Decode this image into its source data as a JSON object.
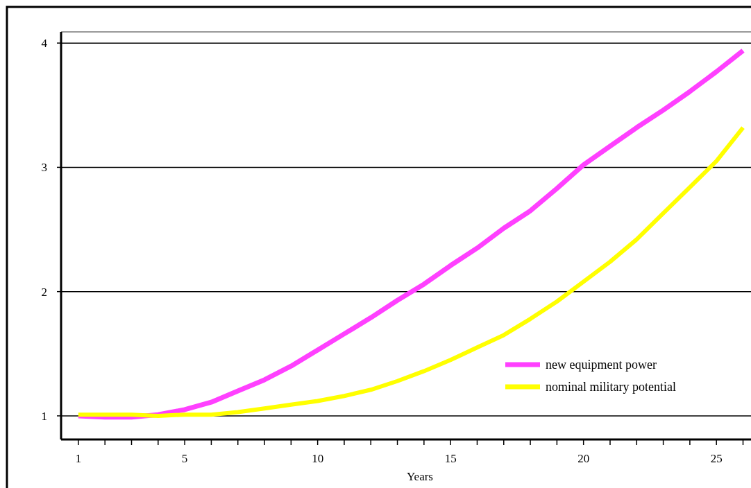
{
  "chart_data": {
    "type": "line",
    "xlabel": "Years",
    "x": [
      1,
      2,
      3,
      4,
      5,
      6,
      7,
      8,
      9,
      10,
      11,
      12,
      13,
      14,
      15,
      16,
      17,
      18,
      19,
      20,
      21,
      22,
      23,
      24,
      25,
      26
    ],
    "series": [
      {
        "name": "new equipment power",
        "color": "#ff40ff",
        "values": [
          1.0,
          0.99,
          0.99,
          1.01,
          1.05,
          1.11,
          1.2,
          1.29,
          1.4,
          1.53,
          1.66,
          1.79,
          1.93,
          2.06,
          2.21,
          2.35,
          2.51,
          2.65,
          2.83,
          3.02,
          3.17,
          3.32,
          3.46,
          3.61,
          3.77,
          3.94
        ]
      },
      {
        "name": "nominal military potential",
        "color": "#ffff00",
        "values": [
          1.01,
          1.01,
          1.01,
          1.0,
          1.01,
          1.01,
          1.03,
          1.06,
          1.09,
          1.12,
          1.16,
          1.21,
          1.28,
          1.36,
          1.45,
          1.55,
          1.65,
          1.78,
          1.92,
          2.08,
          2.24,
          2.42,
          2.63,
          2.84,
          3.05,
          3.32
        ]
      }
    ],
    "xlim": [
      0.35,
      26.3
    ],
    "xticks": [
      1,
      {
        "value": 2,
        "label": null
      },
      {
        "value": 3,
        "label": null
      },
      {
        "value": 4,
        "label": null
      },
      5,
      {
        "value": 6,
        "label": null
      },
      {
        "value": 7,
        "label": null
      },
      {
        "value": 8,
        "label": null
      },
      {
        "value": 9,
        "label": null
      },
      10,
      {
        "value": 11,
        "label": null
      },
      {
        "value": 12,
        "label": null
      },
      {
        "value": 13,
        "label": null
      },
      {
        "value": 14,
        "label": null
      },
      15,
      {
        "value": 16,
        "label": null
      },
      {
        "value": 17,
        "label": null
      },
      {
        "value": 18,
        "label": null
      },
      {
        "value": 19,
        "label": null
      },
      20,
      {
        "value": 21,
        "label": null
      },
      {
        "value": 22,
        "label": null
      },
      {
        "value": 23,
        "label": null
      },
      {
        "value": 24,
        "label": null
      },
      25,
      {
        "value": 26,
        "label": null
      }
    ],
    "ylim": [
      0.81,
      4.09
    ],
    "yticks": [
      1,
      2,
      3,
      4
    ],
    "grid": "y",
    "legend": "bottom right",
    "line_style": "solid",
    "marker": "none"
  }
}
